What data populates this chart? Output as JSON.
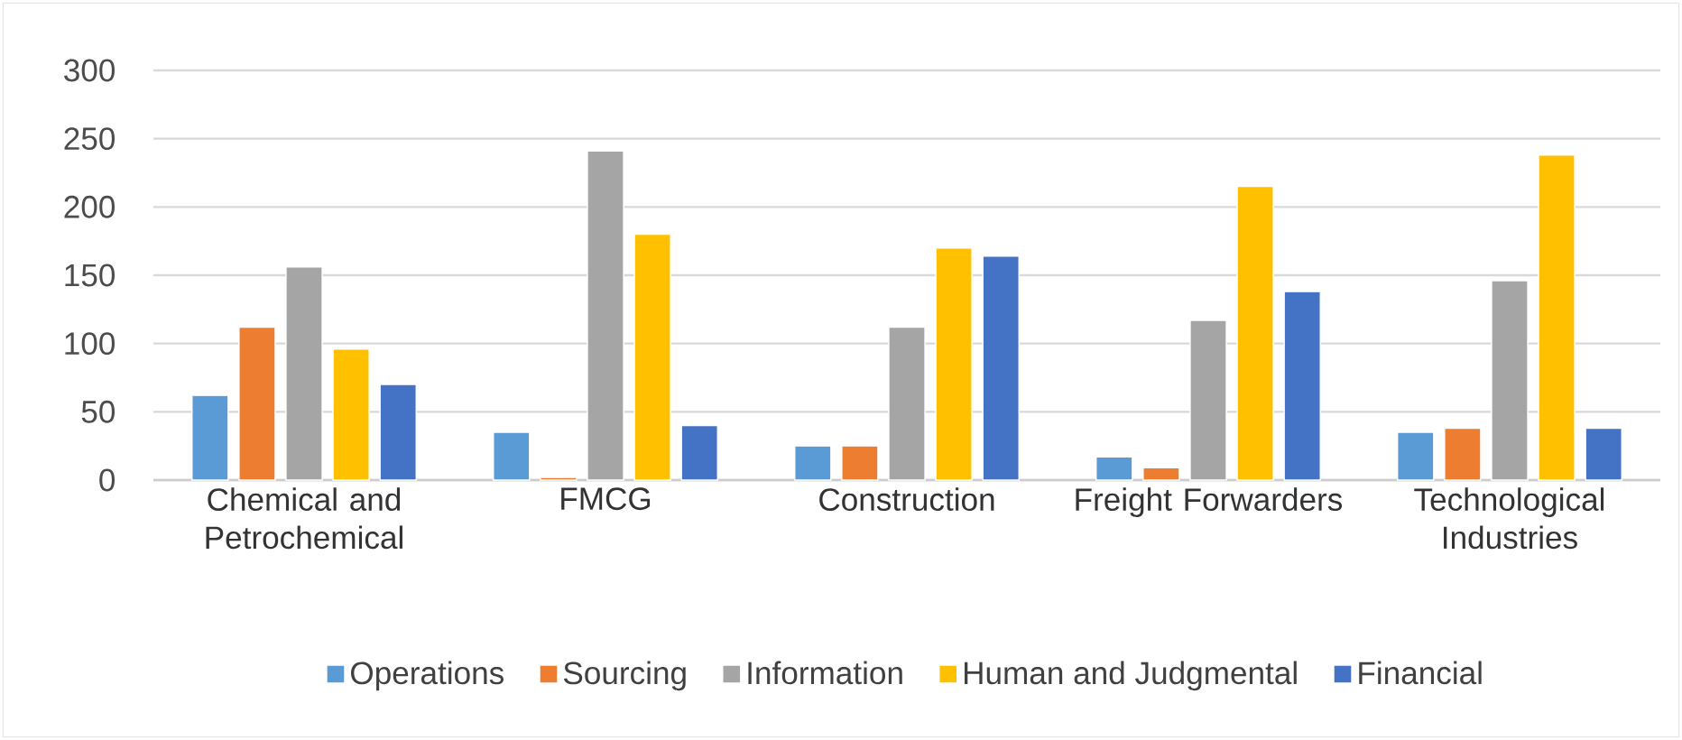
{
  "chart_data": {
    "type": "bar",
    "categories": [
      "Chemical and Petrochemical",
      "FMCG",
      "Construction",
      "Freight Forwarders",
      "Technological Industries"
    ],
    "series": [
      {
        "name": "Operations",
        "color": "#5b9bd5",
        "values": [
          62,
          35,
          25,
          17,
          35
        ]
      },
      {
        "name": "Sourcing",
        "color": "#ed7d31",
        "values": [
          112,
          2,
          25,
          9,
          38
        ]
      },
      {
        "name": "Information",
        "color": "#a5a5a5",
        "values": [
          156,
          241,
          112,
          117,
          146
        ]
      },
      {
        "name": "Human and Judgmental",
        "color": "#ffc000",
        "values": [
          96,
          180,
          170,
          215,
          238
        ]
      },
      {
        "name": "Financial",
        "color": "#4472c4",
        "values": [
          70,
          40,
          164,
          138,
          38
        ]
      }
    ],
    "ylim": [
      0,
      300
    ],
    "yticks": [
      0,
      50,
      100,
      150,
      200,
      250,
      300
    ],
    "grid": "y",
    "legend": "bottom"
  }
}
